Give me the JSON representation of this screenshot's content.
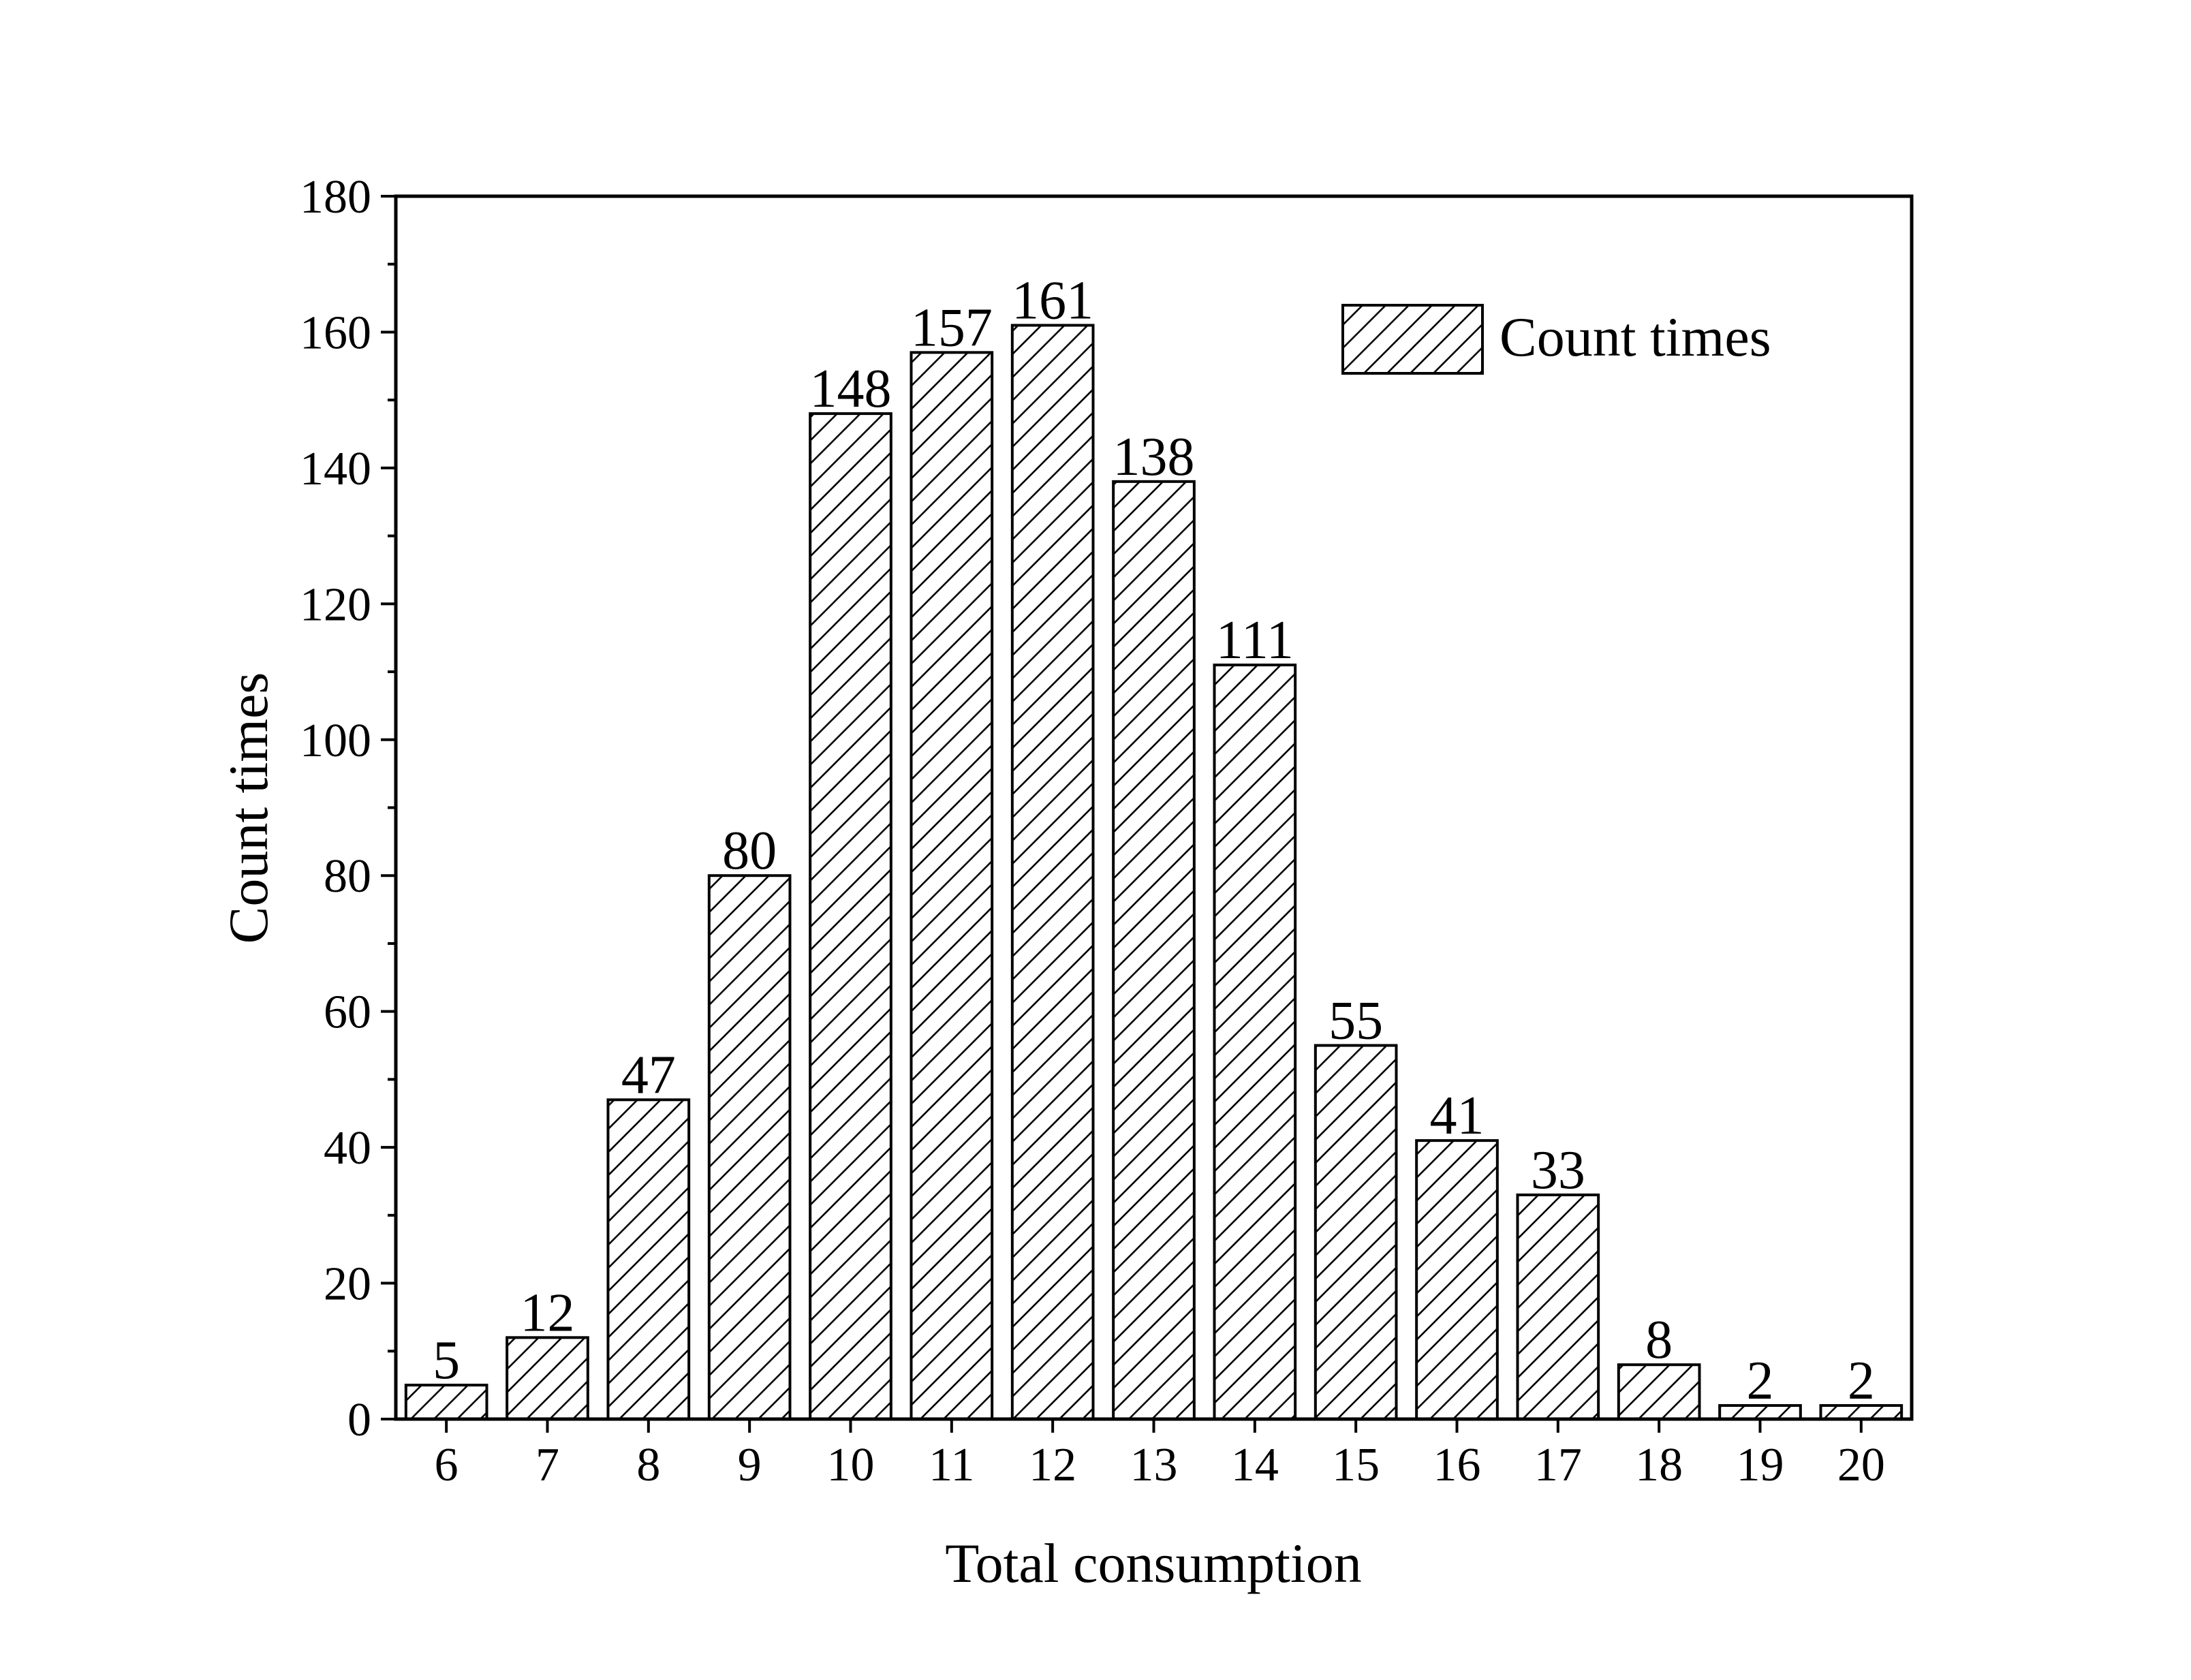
{
  "chart_data": {
    "type": "bar",
    "title": "",
    "xlabel": "Total consumption",
    "ylabel": "Count times",
    "categories": [
      "6",
      "7",
      "8",
      "9",
      "10",
      "11",
      "12",
      "13",
      "14",
      "15",
      "16",
      "17",
      "18",
      "19",
      "20"
    ],
    "series": [
      {
        "name": "Count times",
        "values": [
          5,
          12,
          47,
          80,
          148,
          157,
          161,
          138,
          111,
          55,
          41,
          33,
          8,
          2,
          2
        ]
      }
    ],
    "ylim": [
      0,
      180
    ],
    "yticks": [
      "0",
      "20",
      "40",
      "60",
      "80",
      "100",
      "120",
      "140",
      "160",
      "180"
    ],
    "grid": false,
    "legend": "top-right",
    "pattern": "diagonal-hatch",
    "colors": {
      "fill": "#ffffff",
      "stroke": "#000000"
    }
  }
}
